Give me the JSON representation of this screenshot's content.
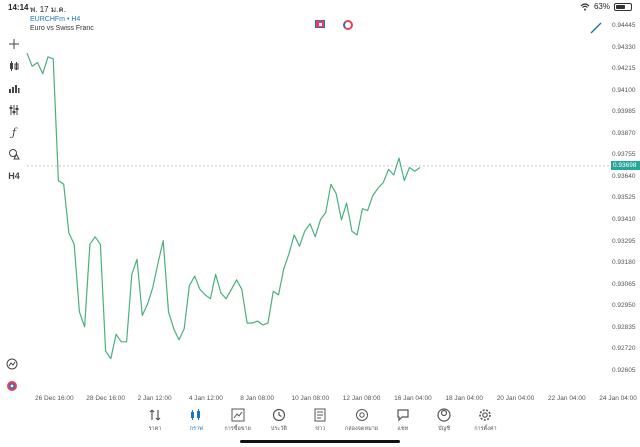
{
  "status": {
    "time": "14:14",
    "date": "พ. 17 ม.ค.",
    "battery": "63%",
    "battery_level": 0.63
  },
  "symbol": {
    "title": "EURCHFm • H4",
    "description": "Euro vs Swiss Franc"
  },
  "toolbar": {
    "timeframe": "H4"
  },
  "chart_data": {
    "type": "line",
    "series": [
      {
        "values": [
          0.943,
          0.9423,
          0.9425,
          0.9419,
          0.9428,
          0.9427,
          0.9362,
          0.936,
          0.9334,
          0.9328,
          0.9292,
          0.9284,
          0.9328,
          0.9332,
          0.9328,
          0.9271,
          0.9267,
          0.928,
          0.9276,
          0.9276,
          0.9312,
          0.932,
          0.929,
          0.9296,
          0.9305,
          0.9318,
          0.933,
          0.9292,
          0.9283,
          0.9277,
          0.9283,
          0.9306,
          0.9311,
          0.9304,
          0.9301,
          0.9299,
          0.9312,
          0.9302,
          0.9299,
          0.9304,
          0.9309,
          0.9304,
          0.9286,
          0.9286,
          0.9287,
          0.9285,
          0.9286,
          0.9303,
          0.9301,
          0.9315,
          0.9323,
          0.9333,
          0.9327,
          0.9335,
          0.9339,
          0.9332,
          0.9341,
          0.9345,
          0.936,
          0.9355,
          0.9341,
          0.935,
          0.9335,
          0.9333,
          0.9347,
          0.9346,
          0.9354,
          0.9358,
          0.9361,
          0.9368,
          0.9365,
          0.9374,
          0.9362,
          0.9369,
          0.9367,
          0.9369
        ]
      }
    ],
    "current_price": "0.93698",
    "y_ticks": [
      "0.94445",
      "0.94330",
      "0.94215",
      "0.94100",
      "0.93985",
      "0.93870",
      "0.93755",
      "0.93640",
      "0.93525",
      "0.93410",
      "0.93295",
      "0.93180",
      "0.93065",
      "0.92950",
      "0.92835",
      "0.92720",
      "0.92605"
    ],
    "x_ticks": [
      "26 Dec 16:00",
      "28 Dec 16:00",
      "2 Jan 12:00",
      "4 Jan 12:00",
      "8 Jan 08:00",
      "10 Jan 08:00",
      "12 Jan 08:00",
      "16 Jan 04:00",
      "18 Jan 04:00",
      "20 Jan 04:00",
      "22 Jan 04:00",
      "24 Jan 04:00"
    ],
    "ylim": [
      0.9255,
      0.945
    ],
    "color": "#4caf7d"
  },
  "tabs": [
    {
      "label": "ราคา",
      "icon": "quotes-arrows-icon"
    },
    {
      "label": "กราฟ",
      "icon": "chart-candles-icon",
      "active": true
    },
    {
      "label": "การซื้อขาย",
      "icon": "trade-chart-icon"
    },
    {
      "label": "ประวัติ",
      "icon": "history-clock-icon"
    },
    {
      "label": "ข่าว",
      "icon": "news-icon"
    },
    {
      "label": "กล่องจดหมาย",
      "icon": "mailbox-at-icon"
    },
    {
      "label": "แชท",
      "icon": "chat-bubble-icon"
    },
    {
      "label": "บัญชี",
      "icon": "account-user-icon"
    },
    {
      "label": "การตั้งค่า",
      "icon": "settings-gear-icon"
    }
  ]
}
